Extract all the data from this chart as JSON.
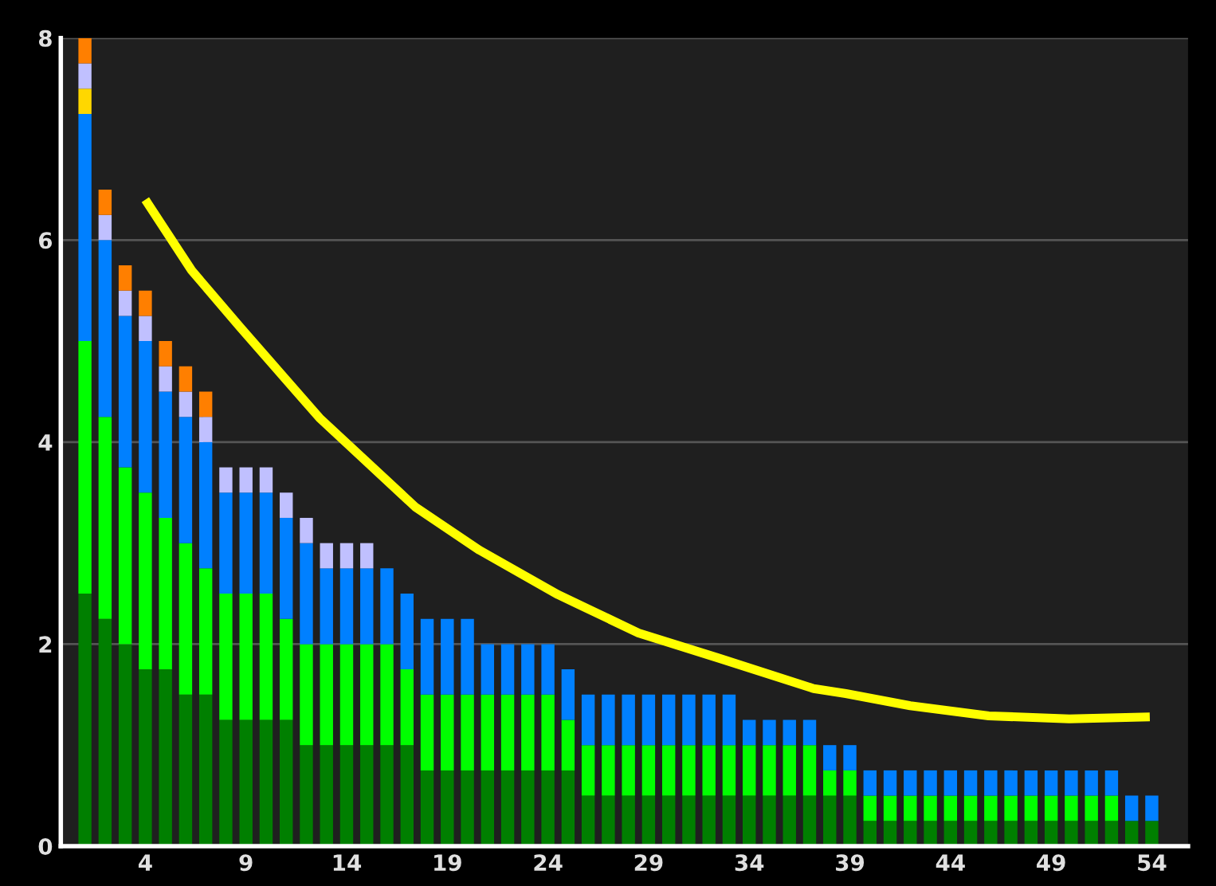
{
  "chart_data": {
    "type": "bar",
    "stacked": true,
    "grid": "y",
    "legend": false,
    "x": [
      1,
      2,
      3,
      4,
      5,
      6,
      7,
      8,
      9,
      10,
      11,
      12,
      13,
      14,
      15,
      16,
      17,
      18,
      19,
      20,
      21,
      22,
      23,
      24,
      25,
      26,
      27,
      28,
      29,
      30,
      31,
      32,
      33,
      34,
      35,
      36,
      37,
      38,
      39,
      40,
      41,
      42,
      43,
      44,
      45,
      46,
      47,
      48,
      49,
      50,
      51,
      52,
      53,
      54
    ],
    "xlim": [
      -0.2,
      55.8
    ],
    "xticks": [
      4,
      9,
      14,
      19,
      24,
      29,
      34,
      39,
      44,
      49,
      54
    ],
    "ylim": [
      0,
      8
    ],
    "yticks": [
      0,
      2,
      4,
      6,
      8
    ],
    "series": [
      {
        "color": "#007f00",
        "values": [
          2.5,
          2.25,
          2,
          1.75,
          1.75,
          1.5,
          1.5,
          1.25,
          1.25,
          1.25,
          1.25,
          1,
          1,
          1,
          1,
          1,
          1,
          0.75,
          0.75,
          0.75,
          0.75,
          0.75,
          0.75,
          0.75,
          0.75,
          0.5,
          0.5,
          0.5,
          0.5,
          0.5,
          0.5,
          0.5,
          0.5,
          0.5,
          0.5,
          0.5,
          0.5,
          0.5,
          0.5,
          0.25,
          0.25,
          0.25,
          0.25,
          0.25,
          0.25,
          0.25,
          0.25,
          0.25,
          0.25,
          0.25,
          0.25,
          0.25,
          0.25,
          0.25
        ]
      },
      {
        "color": "#00ff00",
        "values": [
          2.5,
          2,
          1.75,
          1.75,
          1.5,
          1.5,
          1.25,
          1.25,
          1.25,
          1.25,
          1,
          1,
          1,
          1,
          1,
          1,
          0.75,
          0.75,
          0.75,
          0.75,
          0.75,
          0.75,
          0.75,
          0.75,
          0.5,
          0.5,
          0.5,
          0.5,
          0.5,
          0.5,
          0.5,
          0.5,
          0.5,
          0.5,
          0.5,
          0.5,
          0.5,
          0.25,
          0.25,
          0.25,
          0.25,
          0.25,
          0.25,
          0.25,
          0.25,
          0.25,
          0.25,
          0.25,
          0.25,
          0.25,
          0.25,
          0.25,
          0,
          0
        ]
      },
      {
        "color": "#0080ff",
        "values": [
          2.25,
          1.75,
          1.5,
          1.5,
          1.25,
          1.25,
          1.25,
          1,
          1,
          1,
          1,
          1,
          0.75,
          0.75,
          0.75,
          0.75,
          0.75,
          0.75,
          0.75,
          0.75,
          0.5,
          0.5,
          0.5,
          0.5,
          0.5,
          0.5,
          0.5,
          0.5,
          0.5,
          0.5,
          0.5,
          0.5,
          0.5,
          0.25,
          0.25,
          0.25,
          0.25,
          0.25,
          0.25,
          0.25,
          0.25,
          0.25,
          0.25,
          0.25,
          0.25,
          0.25,
          0.25,
          0.25,
          0.25,
          0.25,
          0.25,
          0.25,
          0.25,
          0.25
        ]
      },
      {
        "color": "#ffd700",
        "values": [
          0.25,
          0,
          0,
          0,
          0,
          0,
          0,
          0,
          0,
          0,
          0,
          0,
          0,
          0,
          0,
          0,
          0,
          0,
          0,
          0,
          0,
          0,
          0,
          0,
          0,
          0,
          0,
          0,
          0,
          0,
          0,
          0,
          0,
          0,
          0,
          0,
          0,
          0,
          0,
          0,
          0,
          0,
          0,
          0,
          0,
          0,
          0,
          0,
          0,
          0,
          0,
          0,
          0,
          0
        ]
      },
      {
        "color": "#c0c0ff",
        "values": [
          0.25,
          0.25,
          0.25,
          0.25,
          0.25,
          0.25,
          0.25,
          0.25,
          0.25,
          0.25,
          0.25,
          0.25,
          0.25,
          0.25,
          0.25,
          0,
          0,
          0,
          0,
          0,
          0,
          0,
          0,
          0,
          0,
          0,
          0,
          0,
          0,
          0,
          0,
          0,
          0,
          0,
          0,
          0,
          0,
          0,
          0,
          0,
          0,
          0,
          0,
          0,
          0,
          0,
          0,
          0,
          0,
          0,
          0,
          0,
          0,
          0
        ]
      },
      {
        "color": "#ff7f00",
        "values": [
          0.25,
          0.25,
          0.25,
          0.25,
          0.25,
          0.25,
          0.25,
          0,
          0,
          0,
          0,
          0,
          0,
          0,
          0,
          0,
          0,
          0,
          0,
          0,
          0,
          0,
          0,
          0,
          0,
          0,
          0,
          0,
          0,
          0,
          0,
          0,
          0,
          0,
          0,
          0,
          0,
          0,
          0,
          0,
          0,
          0,
          0,
          0,
          0,
          0,
          0,
          0,
          0,
          0,
          0,
          0,
          0,
          0
        ]
      },
      {
        "type": "line",
        "color": "#ffff00",
        "x": [
          4,
          6.3,
          8.7,
          12.65,
          17.4,
          20.6,
          24.5,
          28.5,
          32.5,
          37.2,
          38.8,
          42,
          45.9,
          49.9,
          53.9
        ],
        "values": [
          6.4,
          5.7,
          5.14,
          4.24,
          3.36,
          2.93,
          2.49,
          2.11,
          1.86,
          1.56,
          1.51,
          1.39,
          1.29,
          1.26,
          1.28
        ]
      }
    ]
  }
}
